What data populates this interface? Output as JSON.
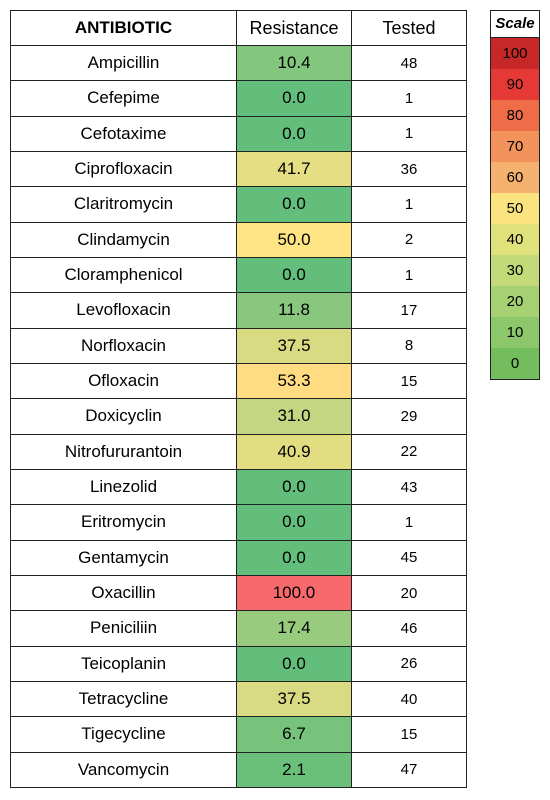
{
  "chart_data": {
    "type": "table",
    "columns": [
      "ANTIBIOTIC",
      "Resistance",
      "Tested"
    ],
    "rows": [
      {
        "antibiotic": "Ampicillin",
        "resistance": "10.4",
        "tested": "48"
      },
      {
        "antibiotic": "Cefepime",
        "resistance": "0.0",
        "tested": "1"
      },
      {
        "antibiotic": "Cefotaxime",
        "resistance": "0.0",
        "tested": "1"
      },
      {
        "antibiotic": "Ciprofloxacin",
        "resistance": "41.7",
        "tested": "36"
      },
      {
        "antibiotic": "Claritromycin",
        "resistance": "0.0",
        "tested": "1"
      },
      {
        "antibiotic": "Clindamycin",
        "resistance": "50.0",
        "tested": "2"
      },
      {
        "antibiotic": "Cloramphenicol",
        "resistance": "0.0",
        "tested": "1"
      },
      {
        "antibiotic": "Levofloxacin",
        "resistance": "11.8",
        "tested": "17"
      },
      {
        "antibiotic": "Norfloxacin",
        "resistance": "37.5",
        "tested": "8"
      },
      {
        "antibiotic": "Ofloxacin",
        "resistance": "53.3",
        "tested": "15"
      },
      {
        "antibiotic": "Doxicyclin",
        "resistance": "31.0",
        "tested": "29"
      },
      {
        "antibiotic": "Nitrofururantoin",
        "resistance": "40.9",
        "tested": "22"
      },
      {
        "antibiotic": "Linezolid",
        "resistance": "0.0",
        "tested": "43"
      },
      {
        "antibiotic": "Eritromycin",
        "resistance": "0.0",
        "tested": "1"
      },
      {
        "antibiotic": "Gentamycin",
        "resistance": "0.0",
        "tested": "45"
      },
      {
        "antibiotic": "Oxacillin",
        "resistance": "100.0",
        "tested": "20"
      },
      {
        "antibiotic": "Peniciliin",
        "resistance": "17.4",
        "tested": "46"
      },
      {
        "antibiotic": "Teicoplanin",
        "resistance": "0.0",
        "tested": "26"
      },
      {
        "antibiotic": "Tetracycline",
        "resistance": "37.5",
        "tested": "40"
      },
      {
        "antibiotic": "Tigecycline",
        "resistance": "6.7",
        "tested": "15"
      },
      {
        "antibiotic": "Vancomycin",
        "resistance": "2.1",
        "tested": "47"
      }
    ],
    "scale": {
      "title": "Scale",
      "steps": [
        {
          "label": "100",
          "color": "#c62828"
        },
        {
          "label": "90",
          "color": "#e53935"
        },
        {
          "label": "80",
          "color": "#ef6c48"
        },
        {
          "label": "70",
          "color": "#f2935c"
        },
        {
          "label": "60",
          "color": "#f5b26e"
        },
        {
          "label": "50",
          "color": "#fbe47f"
        },
        {
          "label": "40",
          "color": "#dfe27b"
        },
        {
          "label": "30",
          "color": "#c3da78"
        },
        {
          "label": "20",
          "color": "#a5d173"
        },
        {
          "label": "10",
          "color": "#8cc86b"
        },
        {
          "label": "0",
          "color": "#74bd5e"
        }
      ]
    },
    "color_stops": [
      {
        "value": 0,
        "color": "#63be7b"
      },
      {
        "value": 50,
        "color": "#ffe484"
      },
      {
        "value": 100,
        "color": "#f8696b"
      }
    ]
  }
}
